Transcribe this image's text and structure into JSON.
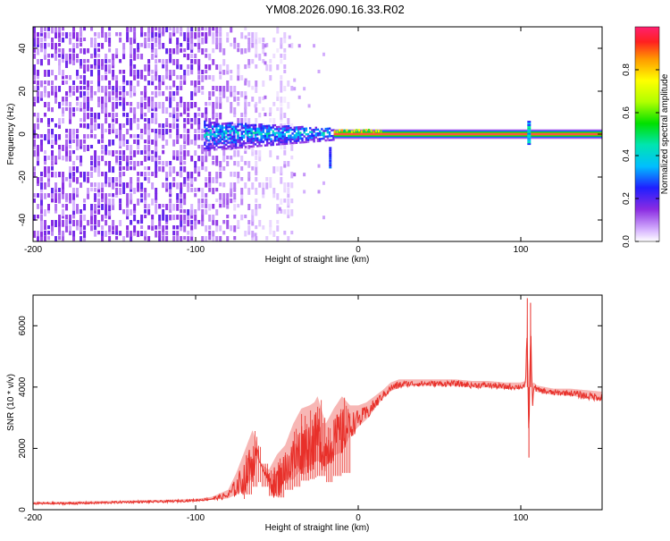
{
  "title": "YM08.2026.090.16.33.R02",
  "chart_data": [
    {
      "type": "heatmap",
      "xlabel": "Height of straight line (km)",
      "ylabel": "Frequency (Hz)",
      "xlim": [
        -200,
        150
      ],
      "ylim": [
        -50,
        50
      ],
      "x_ticks": [
        -200,
        -100,
        0,
        100
      ],
      "y_ticks": [
        -40,
        -20,
        0,
        20,
        40
      ],
      "colorbar": {
        "label": "Normalized spectral amplitude",
        "range": [
          0,
          1
        ],
        "ticks": [
          "0.0",
          "0.2",
          "0.4",
          "0.6",
          "0.8"
        ]
      },
      "features": [
        {
          "name": "noise",
          "x_range": [
            -200,
            -70
          ],
          "freq_range": [
            -50,
            50
          ],
          "amplitude": 0.12
        },
        {
          "name": "onset",
          "x_range": [
            -95,
            -15
          ],
          "freq_range": [
            -8,
            4
          ],
          "amplitude": 0.35
        },
        {
          "name": "carrier",
          "x_range": [
            -15,
            150
          ],
          "freq_center": 0,
          "amplitude": 1.0
        },
        {
          "name": "spike",
          "x": 105,
          "freq_range": [
            -5,
            6
          ],
          "amplitude": 0.4
        }
      ]
    },
    {
      "type": "line",
      "xlabel": "Height of straight line (km)",
      "ylabel": "SNR (10 * v/v)",
      "xlim": [
        -200,
        150
      ],
      "ylim": [
        0,
        7000
      ],
      "x_ticks": [
        -200,
        -100,
        0,
        100
      ],
      "y_ticks": [
        0,
        2000,
        4000,
        6000
      ],
      "color": "#e8302a",
      "series": [
        {
          "x": [
            -200,
            -180,
            -160,
            -140,
            -120,
            -100,
            -90,
            -80,
            -75,
            -70,
            -65,
            -62,
            -60,
            -55,
            -50,
            -45,
            -40,
            -35,
            -30,
            -27,
            -25,
            -20,
            -15,
            -10,
            -5,
            0,
            5,
            10,
            15,
            20,
            25,
            30,
            35,
            40,
            50,
            60,
            70,
            80,
            90,
            100,
            103,
            104,
            105,
            106,
            107,
            108,
            110,
            115,
            120,
            130,
            140,
            150
          ],
          "y": [
            200,
            200,
            220,
            250,
            260,
            300,
            350,
            450,
            700,
            1000,
            1500,
            1800,
            1500,
            900,
            800,
            1300,
            1500,
            1900,
            2000,
            2100,
            2200,
            1800,
            2200,
            2400,
            2700,
            2900,
            3100,
            3400,
            3700,
            3950,
            4050,
            4100,
            4100,
            4100,
            4100,
            4100,
            4050,
            4050,
            4000,
            4000,
            4050,
            5800,
            2000,
            6000,
            3500,
            4000,
            3900,
            3850,
            3800,
            3800,
            3700,
            3650
          ],
          "y_max_envelope": [
            250,
            260,
            280,
            300,
            320,
            350,
            420,
            650,
            1200,
            1900,
            2600,
            2100,
            1500,
            1300,
            1800,
            2100,
            2800,
            3300,
            3400,
            3500,
            3700,
            2800,
            3300,
            3700,
            3400,
            3400,
            3500,
            3700,
            3900,
            4150,
            4250,
            4250,
            4250,
            4250,
            4250,
            4250,
            4200,
            4200,
            4150,
            4150,
            4200,
            6900,
            2500,
            6800,
            4100,
            4150,
            4050,
            4000,
            3950,
            3950,
            3900,
            3850
          ]
        }
      ]
    }
  ]
}
